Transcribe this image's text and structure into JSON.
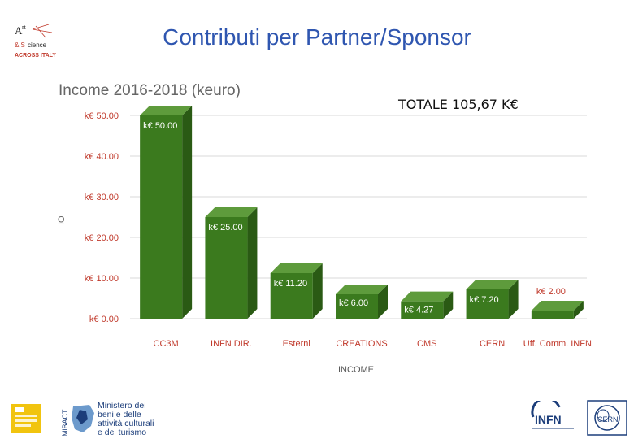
{
  "slide": {
    "title": "Contributi per Partner/Sponsor",
    "total": "TOTALE 105,67 K€"
  },
  "logos": {
    "art_science": "Art & Science ACROSS ITALY",
    "ministero": "Ministero dei beni e delle attività culturali e del turismo",
    "infn": "INFN",
    "cern": "CERN",
    "mibact": "MiBACT"
  },
  "chart_data": {
    "type": "bar",
    "title": "Income 2016-2018 (keuro)",
    "xlabel": "INCOME",
    "ylabel": "IO",
    "categories": [
      "CC3M",
      "INFN DIR.",
      "Esterni",
      "CREATIONS",
      "CMS",
      "CERN",
      "Uff. Comm. INFN"
    ],
    "values": [
      50.0,
      25.0,
      11.2,
      6.0,
      4.27,
      7.2,
      2.0
    ],
    "data_labels": [
      "k€ 50.00",
      "k€ 25.00",
      "k€ 11.20",
      "k€ 6.00",
      "k€ 4.27",
      "k€ 7.20",
      "k€ 2.00"
    ],
    "y_ticks": [
      0,
      10,
      20,
      30,
      40,
      50
    ],
    "y_tick_labels": [
      "k€ 0.00",
      "k€ 10.00",
      "k€ 20.00",
      "k€ 30.00",
      "k€ 40.00",
      "k€ 50.00"
    ],
    "ylim": [
      0,
      50
    ],
    "grid": true,
    "bar_color": "#3b7a1e",
    "bar_top_color": "#5e9b3c",
    "bar_side_color": "#2a5a14",
    "tick_color": "#c0392b"
  }
}
